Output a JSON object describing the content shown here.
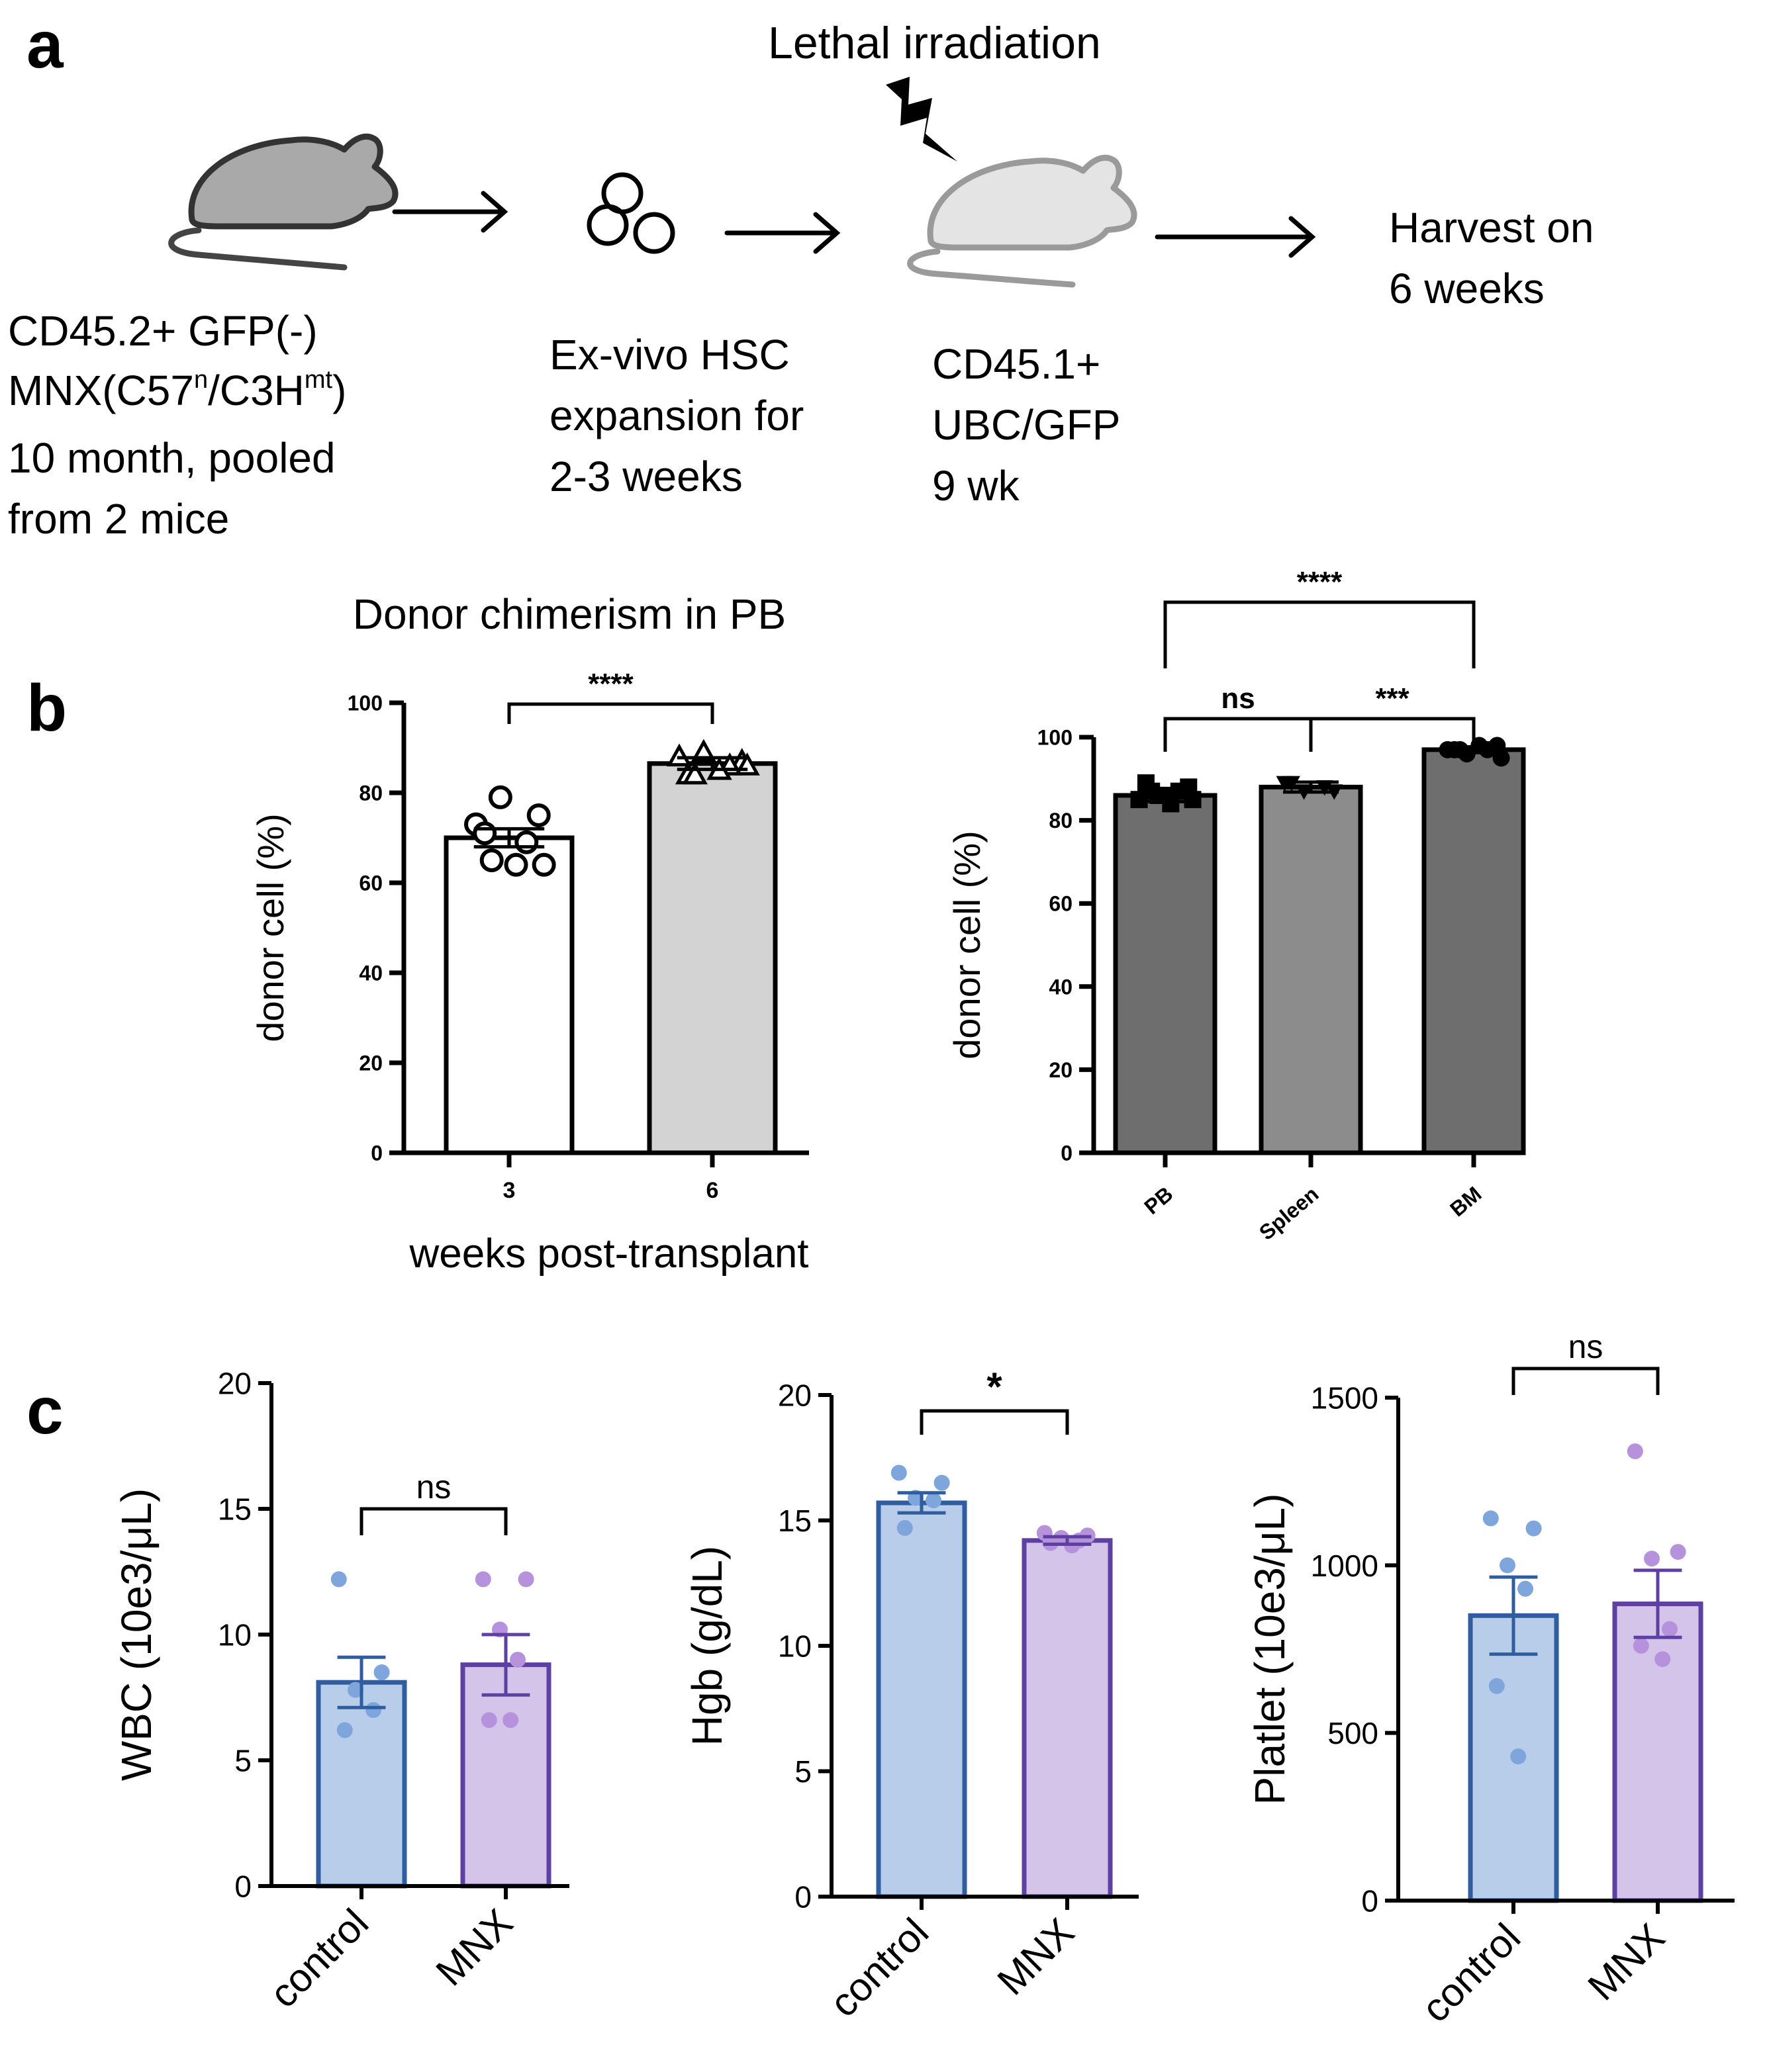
{
  "panel_a": {
    "label": "a",
    "irradiation_label": "Lethal irradiation",
    "donor_lines": [
      "CD45.2+ GFP(-)",
      "MNX(C57",
      "n",
      "/C3H",
      "mt",
      ")",
      "10 month, pooled",
      "from 2 mice"
    ],
    "expansion_lines": [
      "Ex-vivo HSC",
      "expansion for",
      "2-3 weeks"
    ],
    "recipient_lines": [
      "CD45.1+",
      "UBC/GFP",
      "9 wk"
    ],
    "harvest_lines": [
      "Harvest on",
      "6 weeks"
    ],
    "icons": [
      "donor-mouse-icon",
      "arrow-icon",
      "hsc-cells-icon",
      "lightning-icon",
      "recipient-mouse-icon"
    ],
    "colors": {
      "donor_mouse": "#a9a9a9",
      "recipient_mouse": "#e4e4e4"
    }
  },
  "panel_b": {
    "label": "b"
  },
  "panel_c": {
    "label": "c"
  },
  "chart_data": [
    {
      "id": "b1",
      "type": "bar",
      "title": "Donor chimerism in PB",
      "xlabel": "weeks post-transplant",
      "ylabel": "donor cell (%)",
      "ylim": [
        0,
        100
      ],
      "yticks": [
        0,
        20,
        40,
        60,
        80,
        100
      ],
      "categories": [
        "3",
        "6"
      ],
      "values": [
        70,
        86.5
      ],
      "errors": [
        2,
        1.3
      ],
      "bar_colors": [
        "#ffffff",
        "#d3d3d3"
      ],
      "edge_colors": [
        "#000000",
        "#000000"
      ],
      "markers": [
        "open-circle",
        "open-triangle"
      ],
      "points": [
        [
          73,
          75,
          79,
          69,
          71,
          64,
          64,
          65
        ],
        [
          88,
          87,
          89,
          86,
          84,
          85,
          86,
          84
        ]
      ],
      "significance": [
        {
          "from": 0,
          "to": 1,
          "label": "****"
        }
      ]
    },
    {
      "id": "b2",
      "type": "bar",
      "title": "",
      "xlabel": "",
      "ylabel": "donor cell (%)",
      "ylim": [
        0,
        100
      ],
      "yticks": [
        0,
        20,
        40,
        60,
        80,
        100
      ],
      "categories": [
        "PB",
        "Spleen",
        "BM"
      ],
      "values": [
        86,
        88,
        97
      ],
      "errors": [
        1.5,
        1.2,
        0.7
      ],
      "bar_colors": [
        "#6e6e6e",
        "#8c8c8c",
        "#6e6e6e"
      ],
      "edge_colors": [
        "#000000",
        "#000000",
        "#000000"
      ],
      "markers": [
        "filled-square",
        "filled-triangle-down",
        "filled-circle"
      ],
      "points": [
        [
          85,
          88,
          86,
          87,
          89,
          84,
          85,
          87,
          86
        ],
        [
          89,
          87,
          87,
          88,
          89
        ],
        [
          97,
          98,
          96,
          97,
          97,
          98,
          95,
          97
        ]
      ],
      "significance": [
        {
          "from": 0,
          "to": 1,
          "label": "ns"
        },
        {
          "from": 1,
          "to": 2,
          "label": "***"
        },
        {
          "from": 0,
          "to": 2,
          "label": "****"
        }
      ]
    },
    {
      "id": "c1",
      "type": "bar",
      "title": "",
      "xlabel": "",
      "ylabel": "WBC (10e3/μL)",
      "ylim": [
        0,
        20
      ],
      "yticks": [
        0,
        5,
        10,
        15,
        20
      ],
      "categories": [
        "control",
        "MNX"
      ],
      "values": [
        8.1,
        8.8
      ],
      "errors": [
        1.0,
        1.2
      ],
      "bar_colors": [
        "#b7cde9",
        "#d4c4ea"
      ],
      "edge_colors": [
        "#2f5d9f",
        "#5e3fa2"
      ],
      "point_colors": [
        "#7fa6dc",
        "#b692dc"
      ],
      "markers": [
        "filled-circle",
        "filled-circle"
      ],
      "points": [
        [
          12.2,
          8.5,
          7.8,
          7.0,
          6.2
        ],
        [
          12.2,
          12.2,
          10.2,
          9.0,
          6.6,
          6.6
        ]
      ],
      "significance": [
        {
          "from": 0,
          "to": 1,
          "label": "ns"
        }
      ]
    },
    {
      "id": "c2",
      "type": "bar",
      "title": "",
      "xlabel": "",
      "ylabel": "Hgb (g/dL)",
      "ylim": [
        0,
        20
      ],
      "yticks": [
        0,
        5,
        10,
        15,
        20
      ],
      "categories": [
        "control",
        "MNX"
      ],
      "values": [
        15.7,
        14.2
      ],
      "errors": [
        0.4,
        0.15
      ],
      "bar_colors": [
        "#b7cde9",
        "#d4c4ea"
      ],
      "edge_colors": [
        "#2f5d9f",
        "#5e3fa2"
      ],
      "point_colors": [
        "#7fa6dc",
        "#b692dc"
      ],
      "markers": [
        "filled-circle",
        "filled-circle"
      ],
      "points": [
        [
          16.9,
          16.5,
          15.9,
          15.8,
          14.7
        ],
        [
          14.5,
          14.4,
          14.3,
          14.2,
          14.1,
          14.0
        ]
      ],
      "significance": [
        {
          "from": 0,
          "to": 1,
          "label": "*"
        }
      ]
    },
    {
      "id": "c3",
      "type": "bar",
      "title": "",
      "xlabel": "",
      "ylabel": "Platlet (10e3/μL)",
      "ylim": [
        0,
        1500
      ],
      "yticks": [
        0,
        500,
        1000,
        1500
      ],
      "categories": [
        "control",
        "MNX"
      ],
      "values": [
        850,
        885
      ],
      "errors": [
        115,
        100
      ],
      "bar_colors": [
        "#b7cde9",
        "#d4c4ea"
      ],
      "edge_colors": [
        "#2f5d9f",
        "#5e3fa2"
      ],
      "point_colors": [
        "#7fa6dc",
        "#b692dc"
      ],
      "markers": [
        "filled-circle",
        "filled-circle"
      ],
      "points": [
        [
          1140,
          1110,
          1000,
          930,
          640,
          430
        ],
        [
          1340,
          1040,
          1020,
          810,
          760,
          720
        ]
      ],
      "significance": [
        {
          "from": 0,
          "to": 1,
          "label": "ns"
        }
      ]
    }
  ]
}
